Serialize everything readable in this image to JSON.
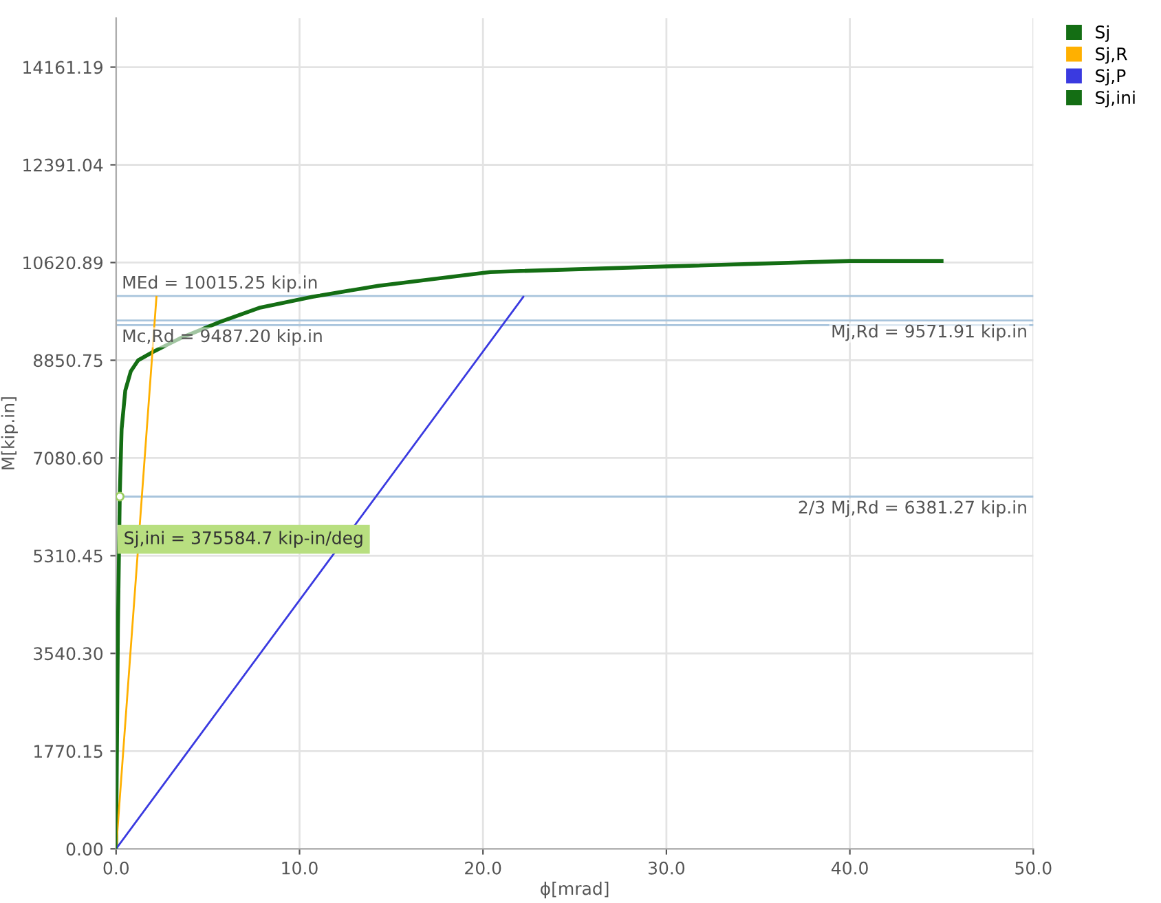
{
  "chart_data": {
    "type": "line",
    "xlabel": "ϕ[mrad]",
    "ylabel": "M[kip.in]",
    "series": [
      {
        "name": "Sj",
        "color": "#146e14",
        "x": [
          0,
          0.1,
          0.2,
          0.3,
          0.5,
          0.8,
          1.2,
          2,
          3.5,
          5.7,
          7.8,
          10.7,
          14.3,
          20.4,
          30,
          40,
          42.5,
          45
        ],
        "values": [
          0,
          4000,
          6400,
          7600,
          8300,
          8650,
          8850,
          9000,
          9250,
          9550,
          9800,
          10000,
          10200,
          10450,
          10550,
          10650,
          10650,
          10650
        ]
      },
      {
        "name": "Sj,R",
        "color": "#ffb000",
        "x": [
          0,
          2.2
        ],
        "values": [
          0,
          10000
        ]
      },
      {
        "name": "Sj,P",
        "color": "#3a3ae0",
        "x": [
          0,
          22.2
        ],
        "values": [
          0,
          10000
        ]
      },
      {
        "name": "Sj,ini",
        "color": "#146e14",
        "x": [
          0,
          0.2
        ],
        "values": [
          0,
          6400
        ]
      }
    ],
    "ref_lines": [
      {
        "axis": "y",
        "value": 10015.25,
        "label": "MEd = 10015.25 kip.in",
        "color": "#a8c4dc"
      },
      {
        "axis": "y",
        "value": 9571.91,
        "label": "Mj,Rd = 9571.91 kip.in",
        "color": "#a8c4dc"
      },
      {
        "axis": "y",
        "value": 9487.2,
        "label": "Mc,Rd = 9487.20 kip.in",
        "color": "#a8c4dc"
      },
      {
        "axis": "y",
        "value": 6381.27,
        "label": "2/3 Mj,Rd = 6381.27 kip.in",
        "color": "#a8c4dc"
      }
    ],
    "annotations": [
      {
        "text": "Sj,ini = 375584.7 kip-in/deg",
        "x": 0.2,
        "y": 6381.27
      }
    ],
    "xlim": [
      0,
      50
    ],
    "ylim": [
      0,
      15050
    ],
    "xticks": [
      {
        "value": 0,
        "label": "0.0"
      },
      {
        "value": 10,
        "label": "10.0"
      },
      {
        "value": 20,
        "label": "20.0"
      },
      {
        "value": 30,
        "label": "30.0"
      },
      {
        "value": 40,
        "label": "40.0"
      },
      {
        "value": 50,
        "label": "50.0"
      }
    ],
    "yticks": [
      {
        "value": 0,
        "label": "0.00"
      },
      {
        "value": 1770.15,
        "label": "1770.15"
      },
      {
        "value": 3540.3,
        "label": "3540.30"
      },
      {
        "value": 5310.45,
        "label": "5310.45"
      },
      {
        "value": 7080.6,
        "label": "7080.60"
      },
      {
        "value": 8850.75,
        "label": "8850.75"
      },
      {
        "value": 10620.89,
        "label": "10620.89"
      },
      {
        "value": 12391.04,
        "label": "12391.04"
      },
      {
        "value": 14161.19,
        "label": "14161.19"
      }
    ],
    "grid": true,
    "legend": "top right",
    "marker": "none",
    "line_style": "solid"
  }
}
